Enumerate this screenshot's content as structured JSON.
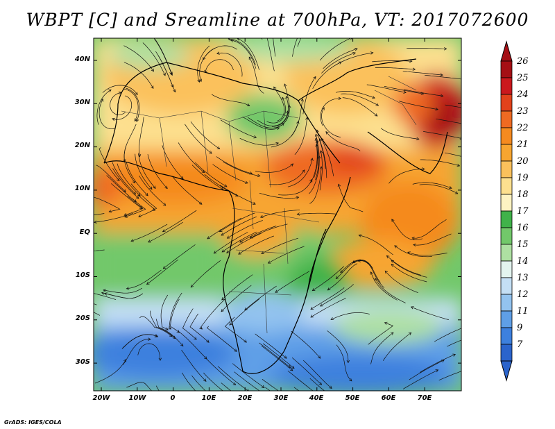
{
  "title": "WBPT [C] and Sreamline at 700hPa, VT: 2017072600",
  "lat_labels": [
    "40N",
    "30N",
    "20N",
    "10N",
    "EQ",
    "10S",
    "20S",
    "30S"
  ],
  "lon_labels": [
    "20W",
    "10W",
    "0",
    "10E",
    "20E",
    "30E",
    "40E",
    "50E",
    "60E",
    "70E"
  ],
  "colorbar": {
    "levels": [
      "26",
      "25",
      "24",
      "23",
      "22",
      "21",
      "20",
      "19",
      "18",
      "17",
      "16",
      "15",
      "14",
      "13",
      "12",
      "11",
      "9",
      "7"
    ],
    "colors": [
      "#a50f15",
      "#cb181d",
      "#e2421b",
      "#ef6a22",
      "#f58a1f",
      "#f7a530",
      "#fbc15c",
      "#fde08f",
      "#fdf3c2",
      "#40b24a",
      "#72c86a",
      "#aee0a2",
      "#e3f4ef",
      "#c4dff5",
      "#93c3ef",
      "#5f9fe7",
      "#3d80de",
      "#2b64cc"
    ]
  },
  "credit": "GrADS: IGES/COLA"
}
